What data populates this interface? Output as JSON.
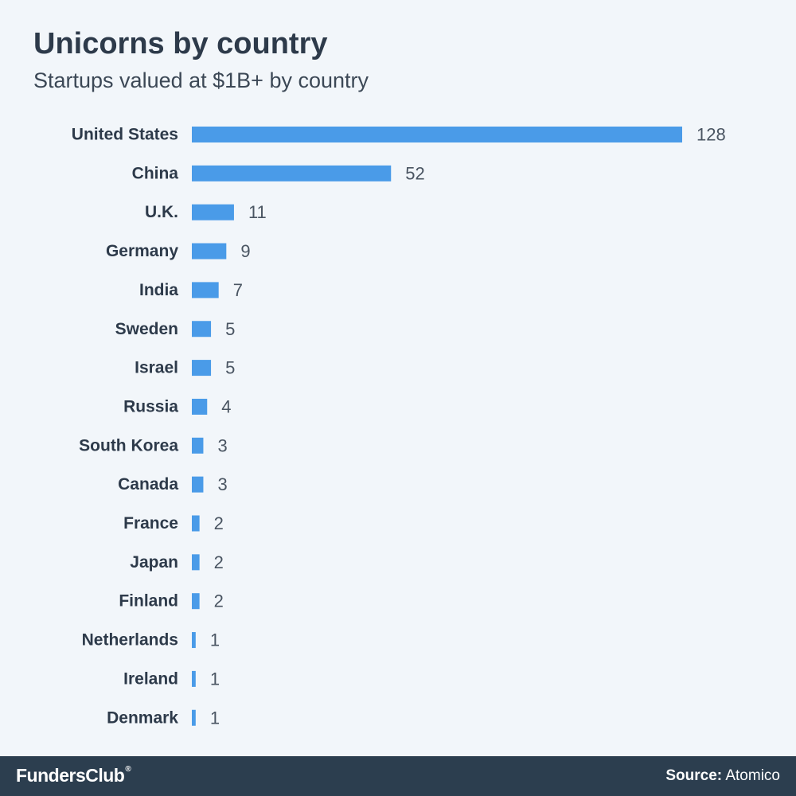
{
  "header": {
    "title": "Unicorns by country",
    "subtitle": "Startups valued at $1B+ by country"
  },
  "footer": {
    "brand": "FundersClub",
    "brand_mark": "®",
    "source_label": "Source:",
    "source_value": "Atomico",
    "background_color": "#2c3e4f"
  },
  "chart_data": {
    "type": "bar",
    "orientation": "horizontal",
    "categories": [
      "United States",
      "China",
      "U.K.",
      "Germany",
      "India",
      "Sweden",
      "Israel",
      "Russia",
      "South Korea",
      "Canada",
      "France",
      "Japan",
      "Finland",
      "Netherlands",
      "Ireland",
      "Denmark"
    ],
    "values": [
      128,
      52,
      11,
      9,
      7,
      5,
      5,
      4,
      3,
      3,
      2,
      2,
      2,
      1,
      1,
      1
    ],
    "title": "Unicorns by country",
    "subtitle": "Startups valued at $1B+ by country",
    "xlabel": "",
    "ylabel": "",
    "xlim": [
      0,
      128
    ],
    "grid": false,
    "legend": "none",
    "data_labels": true,
    "bar_color": "#4a9be8"
  }
}
